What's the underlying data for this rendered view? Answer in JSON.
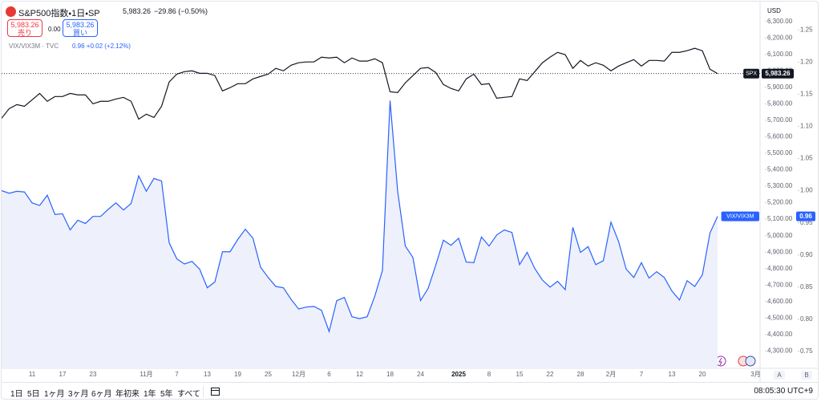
{
  "header": {
    "title": "S&P500指数・1日・SP",
    "close": "5,983.26",
    "change": "−29.86 (−0.50%)",
    "sell_price": "5,983.26",
    "sell_label": "売り",
    "spread": "0.00",
    "buy_price": "5,983.26",
    "buy_label": "買い",
    "indicator_label": "VIX/VIX3M · TVC",
    "indicator_values": "0.96 +0.02 (+2.12%)",
    "currency": "USD",
    "axis_buttons": [
      "A",
      "B"
    ]
  },
  "toolbar": {
    "ranges": [
      "1日",
      "5日",
      "1ヶ月",
      "3ヶ月",
      "6ヶ月",
      "年初来",
      "1年",
      "5年",
      "すべて"
    ],
    "clock": "08:05:30 UTC+9"
  },
  "chart_data": {
    "type": "line",
    "categories": [
      null,
      null,
      null,
      null,
      "11",
      null,
      null,
      null,
      "17",
      null,
      null,
      null,
      "23",
      null,
      null,
      null,
      null,
      null,
      null,
      "11月",
      null,
      null,
      null,
      "7",
      null,
      null,
      null,
      "13",
      null,
      null,
      null,
      "19",
      null,
      null,
      null,
      "25",
      null,
      null,
      null,
      "12月",
      null,
      null,
      null,
      "6",
      null,
      null,
      null,
      "12",
      null,
      null,
      null,
      "18",
      null,
      null,
      null,
      "24",
      null,
      null,
      null,
      null,
      "2025",
      null,
      null,
      null,
      "8",
      null,
      null,
      null,
      "15",
      null,
      null,
      null,
      "22",
      null,
      null,
      null,
      "28",
      null,
      null,
      null,
      "2月",
      null,
      null,
      null,
      "7",
      null,
      null,
      null,
      "13",
      null,
      null,
      null,
      "20",
      null,
      null,
      null,
      null,
      null,
      null,
      "3月"
    ],
    "bold_category": "2025",
    "series": [
      {
        "name": "SPX",
        "color": "#131722",
        "axis": "y",
        "last_label": "5,983.26",
        "price_line": true,
        "values": [
          5712,
          5771,
          5795,
          5785,
          5824,
          5863,
          5815,
          5844,
          5844,
          5863,
          5854,
          5854,
          5800,
          5815,
          5815,
          5829,
          5839,
          5815,
          5707,
          5737,
          5717,
          5785,
          5932,
          5980,
          5995,
          6000,
          5985,
          5985,
          5971,
          5878,
          5898,
          5922,
          5922,
          5951,
          5966,
          5980,
          6015,
          6000,
          6034,
          6049,
          6054,
          6054,
          6083,
          6078,
          6083,
          6049,
          6078,
          6059,
          6059,
          6073,
          6049,
          5873,
          5868,
          5927,
          5971,
          6015,
          6020,
          5990,
          5917,
          5893,
          5878,
          5951,
          5980,
          5917,
          5922,
          5834,
          5839,
          5844,
          5951,
          5941,
          5995,
          6049,
          6083,
          6112,
          6098,
          6015,
          6063,
          6029,
          6049,
          6034,
          6000,
          6029,
          6049,
          6068,
          6029,
          6063,
          6063,
          6059,
          6112,
          6112,
          6122,
          6137,
          6122,
          6010,
          5983.26,
          null,
          null,
          null,
          null,
          null
        ]
      },
      {
        "name": "VIX/VIX3M",
        "color": "#2962ff",
        "axis": "y2",
        "area_color": "#eef0fb",
        "values": [
          1.0,
          0.996,
          0.999,
          0.998,
          0.981,
          0.977,
          0.993,
          0.963,
          0.964,
          0.939,
          0.954,
          0.949,
          0.96,
          0.96,
          0.971,
          0.981,
          0.97,
          0.98,
          1.023,
          0.999,
          1.019,
          1.015,
          0.919,
          0.894,
          0.886,
          0.89,
          0.878,
          0.849,
          0.858,
          0.905,
          0.905,
          0.924,
          0.94,
          0.926,
          0.881,
          0.865,
          0.851,
          0.849,
          0.831,
          0.816,
          0.819,
          0.82,
          0.814,
          0.781,
          0.829,
          0.834,
          0.804,
          0.801,
          0.804,
          0.836,
          0.876,
          1.14,
          0.999,
          0.914,
          0.896,
          0.829,
          0.848,
          0.884,
          0.923,
          0.915,
          0.926,
          0.889,
          0.888,
          0.928,
          0.914,
          0.931,
          0.939,
          0.935,
          0.885,
          0.904,
          0.879,
          0.861,
          0.85,
          0.859,
          0.846,
          0.943,
          0.904,
          0.913,
          0.885,
          0.891,
          0.951,
          0.921,
          0.878,
          0.865,
          0.888,
          0.864,
          0.874,
          0.865,
          0.844,
          0.83,
          0.86,
          0.851,
          0.869,
          0.934,
          0.96,
          null,
          null,
          null,
          null,
          null
        ]
      }
    ],
    "ylim": [
      4200,
      6420
    ],
    "yticks": [
      {
        "value": 4300,
        "label": "4,300.00"
      },
      {
        "value": 4400,
        "label": "4,400.00"
      },
      {
        "value": 4500,
        "label": "4,500.00"
      },
      {
        "value": 4600,
        "label": "4,600.00"
      },
      {
        "value": 4700,
        "label": "4,700.00"
      },
      {
        "value": 4800,
        "label": "4,800.00"
      },
      {
        "value": 4900,
        "label": "4,900.00"
      },
      {
        "value": 5000,
        "label": "5,000.00"
      },
      {
        "value": 5100,
        "label": "5,100.00"
      },
      {
        "value": 5200,
        "label": "5,200.00"
      },
      {
        "value": 5300,
        "label": "5,300.00"
      },
      {
        "value": 5400,
        "label": "5,400.00"
      },
      {
        "value": 5500,
        "label": "5,500.00"
      },
      {
        "value": 5600,
        "label": "5,600.00"
      },
      {
        "value": 5700,
        "label": "5,700.00"
      },
      {
        "value": 5800,
        "label": "5,800.00"
      },
      {
        "value": 5900,
        "label": "5,900.00"
      },
      {
        "value": 6000,
        "label": "6,000.00"
      },
      {
        "value": 6100,
        "label": "6,100.00"
      },
      {
        "value": 6200,
        "label": "6,200.00"
      },
      {
        "value": 6300,
        "label": "6,300.00"
      }
    ],
    "y2lim": [
      0.725,
      1.294
    ],
    "y2ticks": [
      0.75,
      {
        "value": 0.8,
        "label": "0.80"
      },
      0.85,
      {
        "value": 0.9,
        "label": "0.90"
      },
      0.95,
      {
        "value": 1,
        "label": "1.00"
      },
      1.05,
      {
        "value": 1.1,
        "label": "1.10"
      },
      1.15,
      {
        "value": 1.2,
        "label": "1.20"
      },
      1.25
    ],
    "grid": false
  }
}
